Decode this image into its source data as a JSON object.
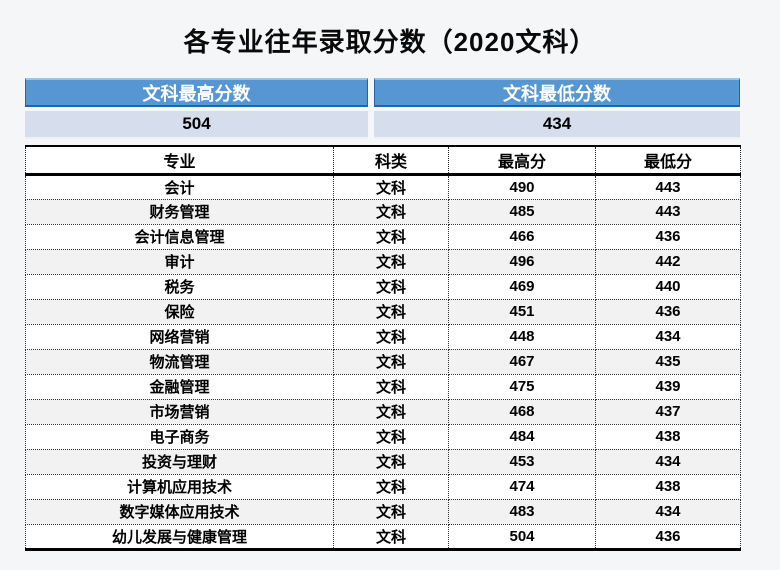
{
  "page": {
    "title": "各专业往年录取分数（2020文科）"
  },
  "summary": {
    "max_label": "文科最高分数",
    "min_label": "文科最低分数",
    "max_value": "504",
    "min_value": "434"
  },
  "table": {
    "headers": [
      "专业",
      "科类",
      "最高分",
      "最低分"
    ],
    "rows": [
      [
        "会计",
        "文科",
        "490",
        "443"
      ],
      [
        "财务管理",
        "文科",
        "485",
        "443"
      ],
      [
        "会计信息管理",
        "文科",
        "466",
        "436"
      ],
      [
        "审计",
        "文科",
        "496",
        "442"
      ],
      [
        "税务",
        "文科",
        "469",
        "440"
      ],
      [
        "保险",
        "文科",
        "451",
        "436"
      ],
      [
        "网络营销",
        "文科",
        "448",
        "434"
      ],
      [
        "物流管理",
        "文科",
        "467",
        "435"
      ],
      [
        "金融管理",
        "文科",
        "475",
        "439"
      ],
      [
        "市场营销",
        "文科",
        "468",
        "437"
      ],
      [
        "电子商务",
        "文科",
        "484",
        "438"
      ],
      [
        "投资与理财",
        "文科",
        "453",
        "434"
      ],
      [
        "计算机应用技术",
        "文科",
        "474",
        "438"
      ],
      [
        "数字媒体应用技术",
        "文科",
        "483",
        "434"
      ],
      [
        "幼儿发展与健康管理",
        "文科",
        "504",
        "436"
      ]
    ]
  },
  "colors": {
    "page_bg": "#f5f6f8",
    "header_blue": "#5596d3",
    "header_blue_dark": "#2163ae",
    "header_blue_light": "#9dc3e6",
    "value_row_bg": "#d6deee",
    "alt_row_bg": "#f2f2f2",
    "text_black": "#000000"
  }
}
